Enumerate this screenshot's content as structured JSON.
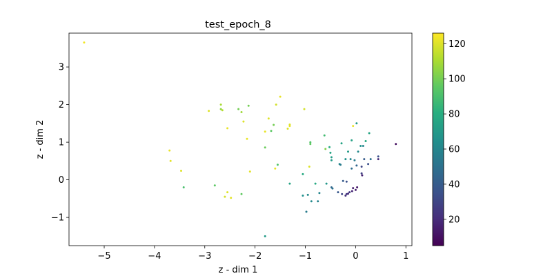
{
  "chart_data": {
    "type": "scatter",
    "title": "test_epoch_8",
    "xlabel": "z - dim 1",
    "ylabel": "z - dim 2",
    "xlim": [
      -5.7,
      1.12
    ],
    "ylim": [
      -1.75,
      3.9
    ],
    "xticks": [
      -5,
      -4,
      -3,
      -2,
      -1,
      0,
      1
    ],
    "yticks": [
      -1,
      0,
      1,
      2,
      3
    ],
    "grid": false,
    "colorbar": {
      "colormap": "viridis",
      "range": [
        5,
        126
      ],
      "ticks": [
        20,
        40,
        60,
        80,
        100,
        120
      ]
    },
    "points": [
      {
        "x": -5.4,
        "y": 3.65,
        "c": 124
      },
      {
        "x": -3.7,
        "y": 0.78,
        "c": 122
      },
      {
        "x": -3.68,
        "y": 0.5,
        "c": 121
      },
      {
        "x": -3.47,
        "y": 0.24,
        "c": 120
      },
      {
        "x": -3.42,
        "y": -0.2,
        "c": 90
      },
      {
        "x": -2.92,
        "y": 1.83,
        "c": 120
      },
      {
        "x": -2.8,
        "y": -0.15,
        "c": 95
      },
      {
        "x": -2.68,
        "y": 2.0,
        "c": 110
      },
      {
        "x": -2.68,
        "y": 1.88,
        "c": 105
      },
      {
        "x": -2.65,
        "y": 1.85,
        "c": 112
      },
      {
        "x": -2.6,
        "y": -0.45,
        "c": 118
      },
      {
        "x": -2.55,
        "y": 1.37,
        "c": 122
      },
      {
        "x": -2.55,
        "y": -0.33,
        "c": 120
      },
      {
        "x": -2.48,
        "y": -0.48,
        "c": 121
      },
      {
        "x": -2.33,
        "y": 1.88,
        "c": 100
      },
      {
        "x": -2.27,
        "y": 1.8,
        "c": 108
      },
      {
        "x": -2.27,
        "y": -0.38,
        "c": 96
      },
      {
        "x": -2.23,
        "y": 1.55,
        "c": 120
      },
      {
        "x": -2.16,
        "y": 1.09,
        "c": 122
      },
      {
        "x": -2.13,
        "y": 1.97,
        "c": 100
      },
      {
        "x": -2.1,
        "y": 0.22,
        "c": 121
      },
      {
        "x": -1.8,
        "y": 1.28,
        "c": 122
      },
      {
        "x": -1.8,
        "y": 0.86,
        "c": 98
      },
      {
        "x": -1.8,
        "y": -1.5,
        "c": 70
      },
      {
        "x": -1.73,
        "y": 1.63,
        "c": 120
      },
      {
        "x": -1.68,
        "y": 1.3,
        "c": 95
      },
      {
        "x": -1.63,
        "y": 1.46,
        "c": 100
      },
      {
        "x": -1.6,
        "y": 0.3,
        "c": 122
      },
      {
        "x": -1.58,
        "y": 2.0,
        "c": 118
      },
      {
        "x": -1.55,
        "y": 0.4,
        "c": 92
      },
      {
        "x": -1.5,
        "y": 2.21,
        "c": 122
      },
      {
        "x": -1.35,
        "y": 1.36,
        "c": 120
      },
      {
        "x": -1.31,
        "y": 1.43,
        "c": 122
      },
      {
        "x": -1.31,
        "y": 1.47,
        "c": 120
      },
      {
        "x": -1.31,
        "y": -0.1,
        "c": 75
      },
      {
        "x": -1.05,
        "y": 0.15,
        "c": 78
      },
      {
        "x": -1.05,
        "y": -0.42,
        "c": 65
      },
      {
        "x": -1.02,
        "y": 1.88,
        "c": 118
      },
      {
        "x": -0.98,
        "y": -0.85,
        "c": 55
      },
      {
        "x": -0.95,
        "y": -0.4,
        "c": 62
      },
      {
        "x": -0.92,
        "y": 0.35,
        "c": 120
      },
      {
        "x": -0.9,
        "y": 1.0,
        "c": 92
      },
      {
        "x": -0.9,
        "y": 0.95,
        "c": 96
      },
      {
        "x": -0.88,
        "y": -0.57,
        "c": 62
      },
      {
        "x": -0.8,
        "y": -0.1,
        "c": 78
      },
      {
        "x": -0.75,
        "y": -0.57,
        "c": 58
      },
      {
        "x": -0.72,
        "y": -0.35,
        "c": 60
      },
      {
        "x": -0.62,
        "y": 1.18,
        "c": 88
      },
      {
        "x": -0.6,
        "y": 0.82,
        "c": 102
      },
      {
        "x": -0.58,
        "y": -0.1,
        "c": 68
      },
      {
        "x": -0.52,
        "y": 0.87,
        "c": 80
      },
      {
        "x": -0.5,
        "y": 0.72,
        "c": 76
      },
      {
        "x": -0.48,
        "y": 0.6,
        "c": 72
      },
      {
        "x": -0.48,
        "y": 0.52,
        "c": 70
      },
      {
        "x": -0.48,
        "y": -0.2,
        "c": 45
      },
      {
        "x": -0.46,
        "y": -0.23,
        "c": 50
      },
      {
        "x": -0.35,
        "y": -0.33,
        "c": 38
      },
      {
        "x": -0.32,
        "y": 0.42,
        "c": 60
      },
      {
        "x": -0.3,
        "y": 0.4,
        "c": 55
      },
      {
        "x": -0.28,
        "y": 0.97,
        "c": 75
      },
      {
        "x": -0.27,
        "y": -0.38,
        "c": 30
      },
      {
        "x": -0.25,
        "y": -0.03,
        "c": 40
      },
      {
        "x": -0.2,
        "y": 0.55,
        "c": 66
      },
      {
        "x": -0.2,
        "y": -0.42,
        "c": 22
      },
      {
        "x": -0.18,
        "y": -0.05,
        "c": 35
      },
      {
        "x": -0.18,
        "y": -0.38,
        "c": 25
      },
      {
        "x": -0.15,
        "y": 0.75,
        "c": 70
      },
      {
        "x": -0.15,
        "y": -0.37,
        "c": 20
      },
      {
        "x": -0.12,
        "y": -0.33,
        "c": 25
      },
      {
        "x": -0.1,
        "y": 0.55,
        "c": 60
      },
      {
        "x": -0.08,
        "y": 1.05,
        "c": 74
      },
      {
        "x": -0.08,
        "y": 0.3,
        "c": 48
      },
      {
        "x": -0.07,
        "y": -0.3,
        "c": 18
      },
      {
        "x": -0.05,
        "y": 1.43,
        "c": 122
      },
      {
        "x": -0.05,
        "y": -0.22,
        "c": 15
      },
      {
        "x": -0.02,
        "y": 0.52,
        "c": 55
      },
      {
        "x": 0.0,
        "y": -0.27,
        "c": 14
      },
      {
        "x": 0.02,
        "y": 1.5,
        "c": 70
      },
      {
        "x": 0.02,
        "y": 0.38,
        "c": 44
      },
      {
        "x": 0.03,
        "y": -0.2,
        "c": 12
      },
      {
        "x": 0.05,
        "y": 0.75,
        "c": 62
      },
      {
        "x": 0.1,
        "y": 0.9,
        "c": 66
      },
      {
        "x": 0.12,
        "y": 0.35,
        "c": 30
      },
      {
        "x": 0.12,
        "y": 0.17,
        "c": 28
      },
      {
        "x": 0.13,
        "y": 0.12,
        "c": 16
      },
      {
        "x": 0.15,
        "y": 0.9,
        "c": 60
      },
      {
        "x": 0.17,
        "y": 0.55,
        "c": 40
      },
      {
        "x": 0.2,
        "y": 1.03,
        "c": 78
      },
      {
        "x": 0.25,
        "y": 0.42,
        "c": 35
      },
      {
        "x": 0.27,
        "y": 1.24,
        "c": 76
      },
      {
        "x": 0.3,
        "y": 0.55,
        "c": 50
      },
      {
        "x": 0.45,
        "y": 0.62,
        "c": 35
      },
      {
        "x": 0.45,
        "y": 0.55,
        "c": 20
      },
      {
        "x": 0.8,
        "y": 0.95,
        "c": 10
      }
    ]
  }
}
